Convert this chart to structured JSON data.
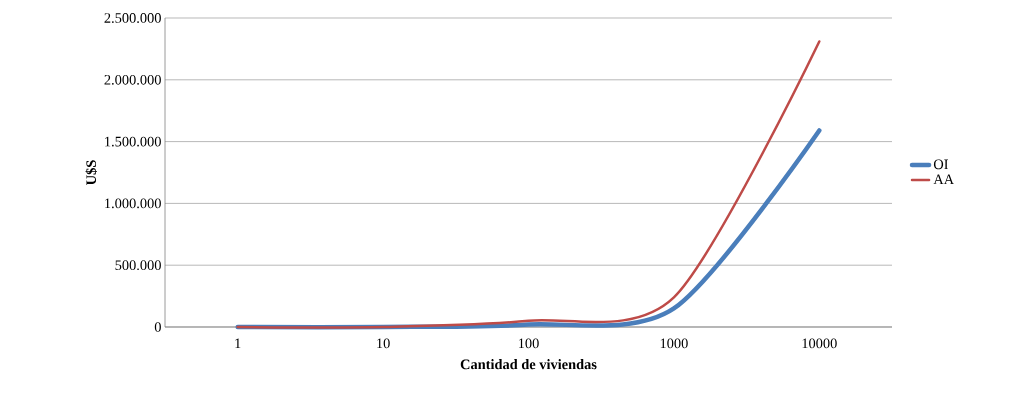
{
  "chart_data": {
    "type": "line",
    "xlabel": "Cantidad de viviendas",
    "ylabel": "U$S",
    "categories": [
      "1",
      "10",
      "100",
      "1000",
      "10000"
    ],
    "series": [
      {
        "name": "OI",
        "color": "#4a7ebb",
        "values": [
          0,
          0,
          20000,
          150000,
          1590000
        ]
      },
      {
        "name": "AA",
        "color": "#be4b48",
        "values": [
          0,
          0,
          50000,
          240000,
          2310000
        ]
      }
    ],
    "ylim": [
      0,
      2500000
    ],
    "yticks": [
      {
        "value": 0,
        "label": "0"
      },
      {
        "value": 500000,
        "label": "500.000"
      },
      {
        "value": 1000000,
        "label": "1.000.000"
      },
      {
        "value": 1500000,
        "label": "1.500.000"
      },
      {
        "value": 2000000,
        "label": "2.000.000"
      },
      {
        "value": 2500000,
        "label": "2.500.000"
      }
    ],
    "grid": "y",
    "legend": "right",
    "marker": "none",
    "line_style": "solid"
  }
}
